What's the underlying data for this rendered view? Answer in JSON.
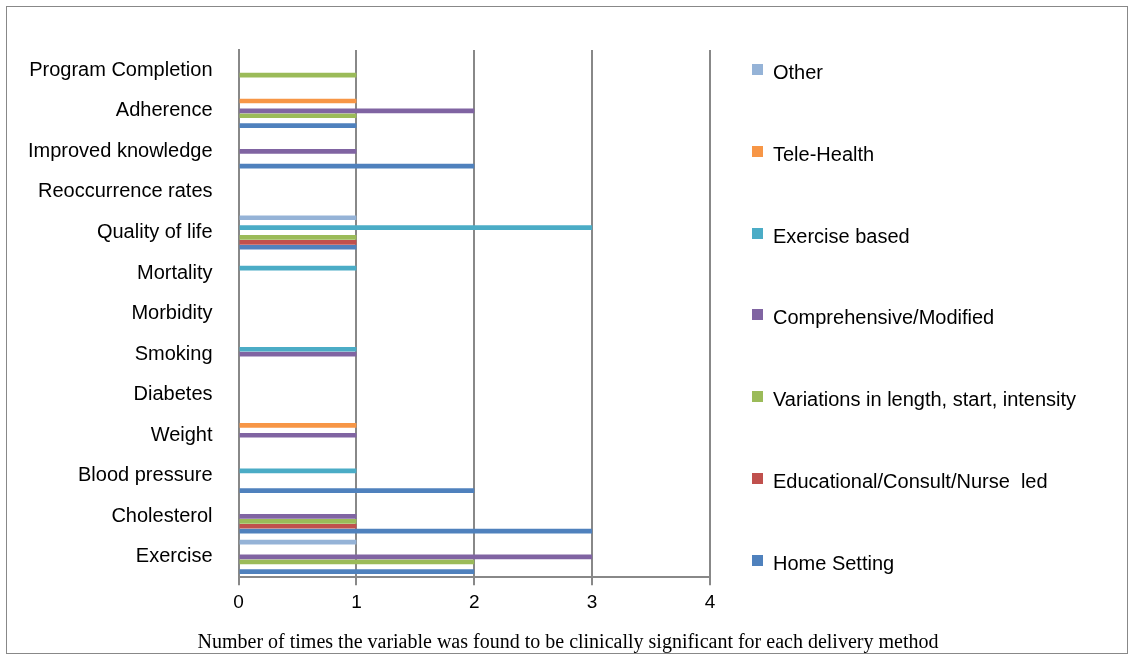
{
  "chart_data": {
    "type": "bar",
    "orientation": "horizontal",
    "xlabel": "Number of times the variable was found to be clinically significant for each delivery method",
    "categories": [
      "Program Completion",
      "Adherence",
      "Improved knowledge",
      "Reoccurrence rates",
      "Quality of life",
      "Mortality",
      "Morbidity",
      "Smoking",
      "Diabetes",
      "Weight",
      "Blood pressure",
      "Cholesterol",
      "Exercise"
    ],
    "series": [
      {
        "name": "Other",
        "color": "#95b3d7",
        "values": [
          0,
          0,
          0,
          0,
          1,
          0,
          0,
          0,
          0,
          0,
          0,
          0,
          1
        ]
      },
      {
        "name": "Tele-Health",
        "color": "#f79646",
        "values": [
          0,
          1,
          0,
          0,
          0,
          0,
          0,
          0,
          0,
          1,
          0,
          0,
          0
        ]
      },
      {
        "name": "Exercise based",
        "color": "#4bacc6",
        "values": [
          0,
          0,
          0,
          0,
          3,
          1,
          0,
          1,
          0,
          0,
          1,
          0,
          0
        ]
      },
      {
        "name": "Comprehensive/Modified",
        "color": "#8064a2",
        "values": [
          0,
          2,
          1,
          0,
          0,
          0,
          0,
          1,
          0,
          1,
          0,
          1,
          3
        ]
      },
      {
        "name": "Variations in length, start, intensity",
        "color": "#9bbb59",
        "values": [
          1,
          1,
          0,
          0,
          1,
          0,
          0,
          0,
          0,
          0,
          0,
          1,
          2
        ]
      },
      {
        "name": "Educational/Consult/Nurse  led",
        "color": "#c0504d",
        "values": [
          0,
          0,
          0,
          0,
          1,
          0,
          0,
          0,
          0,
          0,
          0,
          1,
          0
        ]
      },
      {
        "name": "Home Setting",
        "color": "#4f81bd",
        "values": [
          0,
          1,
          2,
          0,
          1,
          0,
          0,
          0,
          0,
          0,
          2,
          3,
          2
        ]
      }
    ],
    "xlim": [
      0,
      4
    ],
    "xticks": [
      0,
      1,
      2,
      3,
      4
    ],
    "grid": "x",
    "legend": "right"
  }
}
